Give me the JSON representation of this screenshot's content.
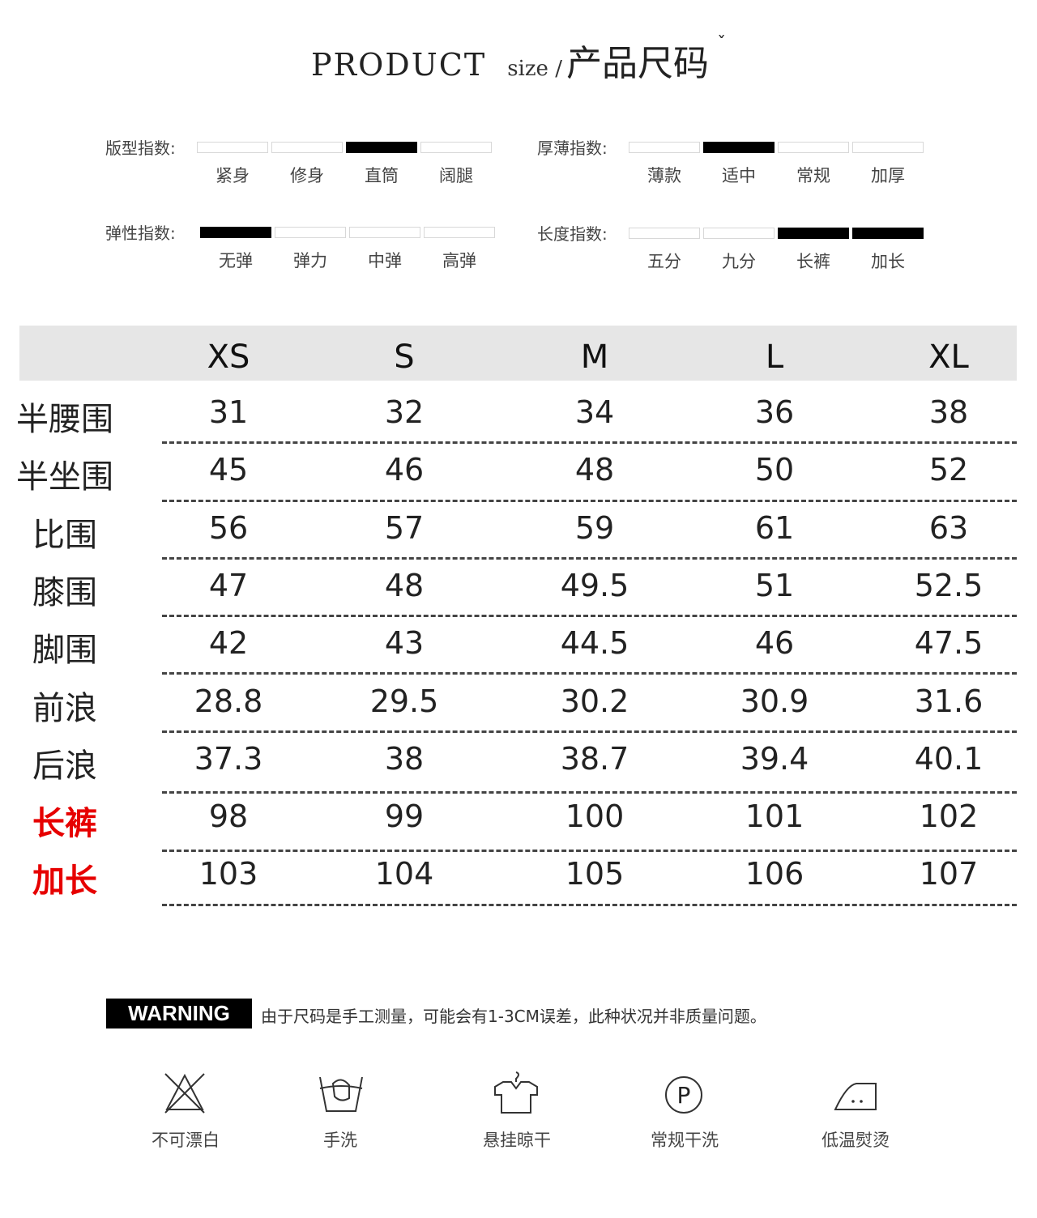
{
  "title": {
    "en": "PRODUCT",
    "size": "size /",
    "cn": "产品尺码",
    "chevron": "ˇ"
  },
  "indices": [
    {
      "label": "版型指数:",
      "options": [
        "紧身",
        "修身",
        "直筒",
        "阔腿"
      ],
      "selected": [
        2
      ]
    },
    {
      "label": "厚薄指数:",
      "options": [
        "薄款",
        "适中",
        "常规",
        "加厚"
      ],
      "selected": [
        1
      ]
    },
    {
      "label": "弹性指数:",
      "options": [
        "无弹",
        "弹力",
        "中弹",
        "高弹"
      ],
      "selected": [
        0
      ]
    },
    {
      "label": "长度指数:",
      "options": [
        "五分",
        "九分",
        "长裤",
        "加长"
      ],
      "selected": [
        2,
        3
      ]
    }
  ],
  "table": {
    "sizes": [
      "XS",
      "S",
      "M",
      "L",
      "XL"
    ],
    "rows": [
      {
        "label": "半腰围",
        "highlight": false,
        "values": [
          "31",
          "32",
          "34",
          "36",
          "38"
        ]
      },
      {
        "label": "半坐围",
        "highlight": false,
        "values": [
          "45",
          "46",
          "48",
          "50",
          "52"
        ]
      },
      {
        "label": "比围",
        "highlight": false,
        "values": [
          "56",
          "57",
          "59",
          "61",
          "63"
        ]
      },
      {
        "label": "膝围",
        "highlight": false,
        "values": [
          "47",
          "48",
          "49.5",
          "51",
          "52.5"
        ]
      },
      {
        "label": "脚围",
        "highlight": false,
        "values": [
          "42",
          "43",
          "44.5",
          "46",
          "47.5"
        ]
      },
      {
        "label": "前浪",
        "highlight": false,
        "values": [
          "28.8",
          "29.5",
          "30.2",
          "30.9",
          "31.6"
        ]
      },
      {
        "label": "后浪",
        "highlight": false,
        "values": [
          "37.3",
          "38",
          "38.7",
          "39.4",
          "40.1"
        ]
      },
      {
        "label": "长裤",
        "highlight": true,
        "values": [
          "98",
          "99",
          "100",
          "101",
          "102"
        ]
      },
      {
        "label": "加长",
        "highlight": true,
        "values": [
          "103",
          "104",
          "105",
          "106",
          "107"
        ]
      }
    ],
    "highlight_color": "#e60000",
    "header_bg": "#e6e6e6"
  },
  "warning": {
    "badge": "WARNING",
    "text": "由于尺码是手工测量，可能会有1-3CM误差，此种状况并非质量问题。"
  },
  "care": [
    {
      "icon": "no-bleach-icon",
      "label": "不可漂白"
    },
    {
      "icon": "hand-wash-icon",
      "label": "手洗"
    },
    {
      "icon": "hang-dry-icon",
      "label": "悬挂晾干"
    },
    {
      "icon": "dry-clean-icon",
      "label": "常规干洗"
    },
    {
      "icon": "low-iron-icon",
      "label": "低温熨烫"
    }
  ]
}
